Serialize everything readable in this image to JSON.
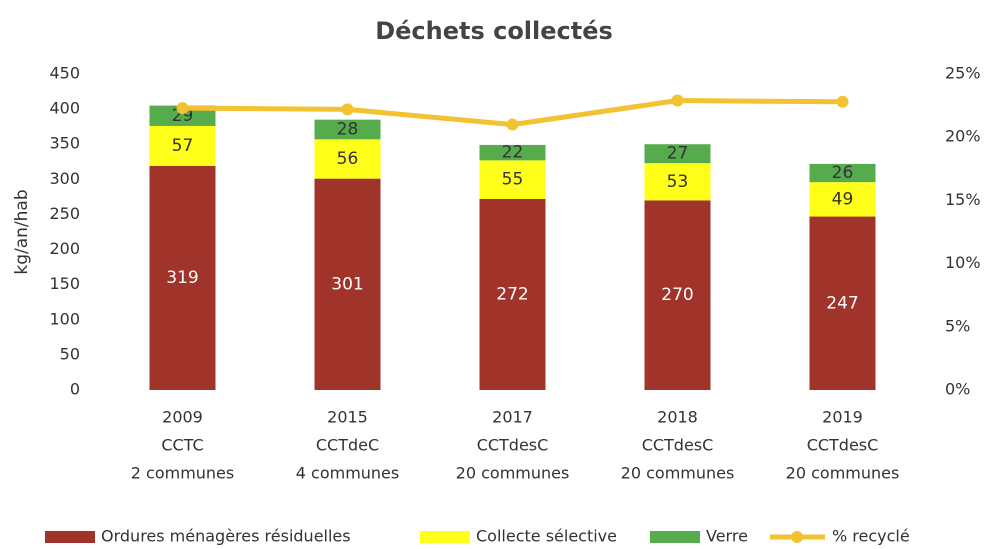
{
  "chart_data": {
    "type": "stacked-bar-line",
    "title": "Déchets collectés",
    "y_label": "kg/an/hab",
    "categories": [
      [
        "2009",
        "CCTC",
        "2 communes"
      ],
      [
        "2015",
        "CCTdeC",
        "4 communes"
      ],
      [
        "2017",
        "CCTdesC",
        "20 communes"
      ],
      [
        "2018",
        "CCTdesC",
        "20 communes"
      ],
      [
        "2019",
        "CCTdesC",
        "20 communes"
      ]
    ],
    "series": [
      {
        "name": "Ordures ménagères résiduelles",
        "color": "#a0342a",
        "label_color": "#ffffff",
        "values": [
          319,
          301,
          272,
          270,
          247
        ]
      },
      {
        "name": "Collecte sélective",
        "color": "#ffff1a",
        "label_color": "#333333",
        "values": [
          57,
          56,
          55,
          53,
          49
        ]
      },
      {
        "name": "Verre",
        "color": "#56ab4c",
        "label_color": "#333333",
        "values": [
          29,
          28,
          22,
          27,
          26
        ]
      },
      {
        "name": "% recyclé",
        "color": "#f2c232",
        "axis": "y2",
        "values": [
          22.3,
          22.2,
          21.0,
          22.9,
          22.8
        ]
      }
    ],
    "ylim": [
      0,
      450
    ],
    "yticks": [
      0,
      50,
      100,
      150,
      200,
      250,
      300,
      350,
      400,
      450
    ],
    "y2lim": [
      0,
      25
    ],
    "y2ticks": [
      {
        "value": 0,
        "label": "0%"
      },
      {
        "value": 5,
        "label": "5%"
      },
      {
        "value": 10,
        "label": "10%"
      },
      {
        "value": 15,
        "label": "15%"
      },
      {
        "value": 20,
        "label": "20%"
      },
      {
        "value": 25,
        "label": "25%"
      }
    ],
    "grid": false,
    "legend": "bottom"
  }
}
